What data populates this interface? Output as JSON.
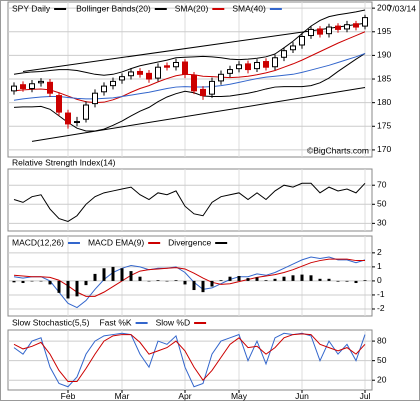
{
  "chart_data": [
    {
      "type": "candlestick",
      "title": "SPY Daily",
      "date": "7/03/14",
      "watermark": "©BigCharts.com",
      "up_color": "#000000",
      "down_color": "#cc0000",
      "open": [
        182.5,
        183.8,
        183,
        184.2,
        184.3,
        181.5,
        177.8,
        175.8,
        176.5,
        179.8,
        182.3,
        183.6,
        184.8,
        185.7,
        186.6,
        186.2,
        185.2,
        187.8,
        187.6,
        188.6,
        185.8,
        182.8,
        181.8,
        184.6,
        186.2,
        187.2,
        188.2,
        187.2,
        188.7,
        187.6,
        189.6,
        191.2,
        192.2,
        194.2,
        195.6,
        194.6,
        196.2,
        195.6,
        196.7,
        196.2
      ],
      "high": [
        184.3,
        184.5,
        184.8,
        185.2,
        185,
        182.2,
        178.5,
        177,
        180.3,
        182.8,
        184.3,
        185.3,
        186.2,
        187.3,
        187.3,
        186.9,
        188.3,
        188.5,
        189.3,
        189.2,
        186.5,
        183.5,
        185.3,
        186.8,
        187.8,
        188.8,
        188.9,
        189.2,
        189.4,
        190.2,
        191.7,
        192.8,
        194.8,
        196.2,
        196.2,
        196.7,
        196.8,
        197.3,
        197.3,
        198.6
      ],
      "low": [
        181.7,
        182.3,
        182.2,
        183.4,
        181.2,
        177.2,
        174.5,
        175,
        175.8,
        179,
        181.5,
        182.8,
        184,
        184.9,
        185.3,
        184.2,
        184.5,
        186.8,
        186.8,
        185.2,
        181.8,
        180.6,
        181,
        183.8,
        185.4,
        186.4,
        186.2,
        186.5,
        186.8,
        186.9,
        188.8,
        190.5,
        191.4,
        193.5,
        193.8,
        193.8,
        194.8,
        194.9,
        195.3,
        195.5
      ],
      "close": [
        183.5,
        183,
        184,
        184.5,
        182,
        178,
        175.5,
        176,
        179.5,
        182,
        183.5,
        184.5,
        185.5,
        186.5,
        186,
        185,
        187.5,
        187.5,
        188.5,
        186,
        182.5,
        181.5,
        184.5,
        186,
        187,
        188,
        187,
        188.5,
        187.5,
        189.5,
        191,
        192,
        194,
        195.5,
        194.5,
        196,
        195.5,
        196.5,
        196,
        198
      ],
      "series": [
        {
          "name": "Bollinger Bands(20)",
          "color": "#000000",
          "upper": [
            186,
            186.3,
            186.5,
            186.6,
            186.8,
            187,
            187,
            186.8,
            186.4,
            186,
            185.8,
            186,
            186.5,
            187.2,
            187.8,
            188.2,
            188.6,
            189,
            189.5,
            189.6,
            189.7,
            189.8,
            189.7,
            189.5,
            189.2,
            189.1,
            189.2,
            189.4,
            189.7,
            190.3,
            191.6,
            193,
            194.6,
            196.2,
            197.4,
            198.2,
            198.6,
            198.9,
            199.2,
            199.6
          ],
          "lower": [
            179,
            179.1,
            179.1,
            179.2,
            178.6,
            177.2,
            175.8,
            174.6,
            174,
            174,
            174.4,
            175.2,
            176.1,
            177.2,
            178.2,
            179,
            180.2,
            181.2,
            181.9,
            182.4,
            182.1,
            181.4,
            181.3,
            181.3,
            181.4,
            181.7,
            182,
            182.4,
            182.9,
            183.3,
            183.4,
            183.4,
            183.4,
            183.6,
            184.2,
            185.2,
            186.6,
            187.9,
            189.2,
            190.4
          ]
        },
        {
          "name": "SMA(20)",
          "color": "#cc0000",
          "values": [
            182.5,
            182.7,
            182.8,
            182.9,
            182.7,
            182.1,
            181.4,
            180.7,
            180.2,
            180,
            180.1,
            180.6,
            181.3,
            182.2,
            183,
            183.6,
            184.4,
            185.1,
            185.7,
            186,
            185.9,
            185.6,
            185.5,
            185.4,
            185.3,
            185.4,
            185.6,
            185.9,
            186.3,
            186.8,
            187.5,
            188.2,
            189,
            189.9,
            190.8,
            191.7,
            192.6,
            193.4,
            194.2,
            195
          ]
        },
        {
          "name": "SMA(40)",
          "color": "#3366cc",
          "values": [
            180.5,
            180.8,
            181,
            181.2,
            181.3,
            181.3,
            181.1,
            180.9,
            180.8,
            180.8,
            180.9,
            181,
            181.3,
            181.6,
            181.9,
            182.2,
            182.6,
            183,
            183.3,
            183.4,
            183.3,
            183.3,
            183.4,
            183.6,
            183.9,
            184.3,
            184.7,
            185.1,
            185.4,
            185.6,
            185.8,
            186,
            186.4,
            186.9,
            187.4,
            187.9,
            188.5,
            189.1,
            189.7,
            190.4
          ]
        }
      ],
      "trendlines": [
        {
          "x": [
            1,
            39
          ],
          "values": [
            186.6,
            196.8
          ]
        },
        {
          "x": [
            2,
            39
          ],
          "values": [
            171.8,
            183.2
          ]
        }
      ],
      "ylim": [
        168.5,
        201.3
      ],
      "yticks": [
        170,
        175,
        180,
        185,
        190,
        195,
        200
      ],
      "grid": true
    },
    {
      "type": "line",
      "title": "Relative Strength Index(14)",
      "series": [
        {
          "color": "#000000",
          "values": [
            55,
            52,
            58,
            60,
            45,
            35,
            32,
            38,
            50,
            58,
            62,
            64,
            66,
            68,
            60,
            55,
            62,
            60,
            64,
            48,
            40,
            38,
            52,
            58,
            60,
            62,
            55,
            62,
            55,
            64,
            70,
            68,
            72,
            72,
            62,
            68,
            64,
            66,
            62,
            72
          ]
        }
      ],
      "ylim": [
        22,
        87
      ],
      "yticks": [
        30,
        50,
        70
      ],
      "grid": true
    },
    {
      "type": "line",
      "series": [
        {
          "name": "MACD(12,26)",
          "color": "#3366cc",
          "values": [
            0.3,
            0.2,
            0.3,
            0.3,
            0,
            -0.8,
            -1.6,
            -1.9,
            -1.4,
            -0.6,
            0.1,
            0.6,
            0.9,
            1.1,
            1.0,
            0.8,
            0.9,
            0.9,
            1.0,
            0.6,
            -0.1,
            -0.6,
            -0.5,
            -0.2,
            0.1,
            0.3,
            0.3,
            0.5,
            0.4,
            0.6,
            0.9,
            1.2,
            1.5,
            1.7,
            1.6,
            1.7,
            1.5,
            1.5,
            1.3,
            1.5
          ]
        },
        {
          "name": "MACD EMA(9)",
          "color": "#cc0000",
          "values": [
            0.4,
            0.35,
            0.3,
            0.3,
            0.25,
            0.05,
            -0.35,
            -0.8,
            -1.1,
            -1.1,
            -0.8,
            -0.4,
            0,
            0.4,
            0.7,
            0.8,
            0.85,
            0.9,
            0.95,
            0.85,
            0.55,
            0.2,
            -0.1,
            -0.25,
            -0.2,
            -0.05,
            0.1,
            0.25,
            0.35,
            0.45,
            0.6,
            0.8,
            1.05,
            1.3,
            1.45,
            1.55,
            1.55,
            1.55,
            1.45,
            1.45
          ]
        },
        {
          "name": "Divergence",
          "color": "#000000",
          "type": "bar",
          "values": [
            -0.1,
            -0.15,
            0,
            0,
            -0.25,
            -0.85,
            -1.25,
            -1.1,
            -0.3,
            0.5,
            0.9,
            1.0,
            0.9,
            0.7,
            0.3,
            0,
            0.05,
            0,
            0.05,
            -0.25,
            -0.65,
            -0.8,
            -0.4,
            0.05,
            0.3,
            0.35,
            0.2,
            0.25,
            0.05,
            0.15,
            0.3,
            0.4,
            0.45,
            0.4,
            0.15,
            0.15,
            -0.05,
            -0.05,
            -0.15,
            0.05
          ]
        }
      ],
      "ylim": [
        -2.5,
        3.2
      ],
      "yticks": [
        -2,
        -1,
        0,
        1,
        2
      ],
      "grid": true
    },
    {
      "type": "line",
      "title": "Slow Stochastic(5,5)",
      "categories": [
        null,
        null,
        null,
        null,
        null,
        null,
        "Feb",
        null,
        null,
        null,
        null,
        null,
        "Mar",
        null,
        null,
        null,
        null,
        null,
        null,
        "Apr",
        null,
        null,
        null,
        null,
        null,
        "May",
        null,
        null,
        null,
        null,
        null,
        null,
        "Jun",
        null,
        null,
        null,
        null,
        null,
        null,
        "Jul"
      ],
      "series": [
        {
          "name": "Fast %K",
          "color": "#3366cc",
          "values": [
            70,
            60,
            80,
            85,
            40,
            15,
            10,
            25,
            60,
            80,
            88,
            90,
            92,
            90,
            60,
            40,
            80,
            75,
            88,
            40,
            10,
            15,
            60,
            80,
            85,
            90,
            50,
            80,
            45,
            85,
            92,
            90,
            92,
            88,
            50,
            80,
            60,
            75,
            50,
            90
          ]
        },
        {
          "name": "Slow %D",
          "color": "#cc0000",
          "values": [
            75,
            68,
            72,
            78,
            60,
            35,
            18,
            18,
            38,
            60,
            80,
            88,
            90,
            90,
            78,
            60,
            65,
            70,
            80,
            65,
            40,
            20,
            35,
            55,
            75,
            85,
            70,
            72,
            60,
            70,
            85,
            90,
            91,
            90,
            75,
            70,
            65,
            70,
            60,
            75
          ]
        }
      ],
      "ylim": [
        5,
        97
      ],
      "yticks": [
        20,
        50,
        80
      ],
      "grid": true
    }
  ]
}
